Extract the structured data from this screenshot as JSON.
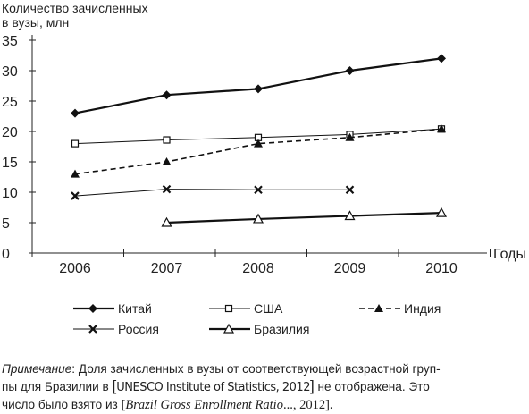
{
  "chart_data": {
    "type": "line",
    "ylabel_line1": "Количество зачисленных",
    "ylabel_line2": "в вузы, млн",
    "xlabel": "Годы",
    "x": [
      "2006",
      "2007",
      "2008",
      "2009",
      "2010"
    ],
    "yticks": [
      "0",
      "5",
      "10",
      "15",
      "20",
      "25",
      "30",
      "35"
    ],
    "ylim": [
      0,
      35
    ],
    "grid": false,
    "legend_position": "bottom",
    "series": [
      {
        "name": "Китай",
        "marker": "filled-diamond",
        "style": "solid-thick",
        "values": [
          23,
          26,
          27,
          30,
          32
        ]
      },
      {
        "name": "США",
        "marker": "open-square",
        "style": "solid-thin",
        "values": [
          18,
          18.6,
          19,
          19.5,
          20.4
        ]
      },
      {
        "name": "Индия",
        "marker": "filled-triangle",
        "style": "dashed",
        "values": [
          13,
          15,
          18,
          19,
          20.4
        ]
      },
      {
        "name": "Россия",
        "marker": "x-cross",
        "style": "solid-thin",
        "values": [
          9.4,
          10.5,
          10.4,
          10.4,
          null
        ]
      },
      {
        "name": "Бразилия",
        "marker": "open-triangle",
        "style": "solid-thick",
        "values": [
          null,
          5,
          5.6,
          6.1,
          6.6
        ]
      }
    ]
  },
  "note": {
    "label": "Примечание",
    "text1": ": Доля зачисленных в вузы от соответствующей возрастной груп-",
    "text2a": "пы для Бразилии в ",
    "bracket_open": "[",
    "source1": "UNESCO Institute of Statistics, 2012",
    "bracket_close": "]",
    "text2b": " не отображена. Это",
    "text3a": "число было взято из ",
    "source2_open": "[",
    "source2_title": "Brazil Gross Enrollment Ratio",
    "source2_tail": "..., 2012].",
    "text3b": ""
  }
}
